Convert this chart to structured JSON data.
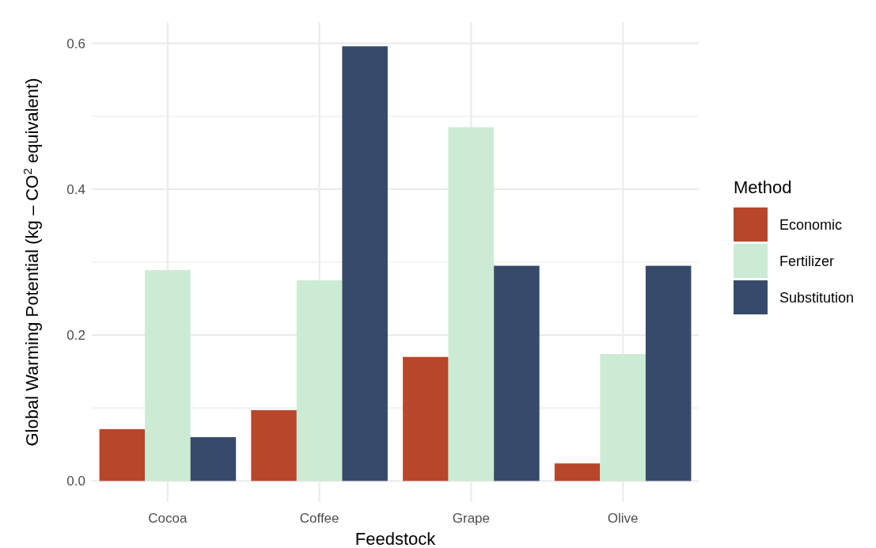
{
  "chart_data": {
    "type": "bar",
    "xlabel": "Feedstock",
    "ylabel": "Global Warming Potential (kg – CO$^{2}$ equivalent)",
    "legend_title": "Method",
    "categories": [
      "Cocoa",
      "Coffee",
      "Grape",
      "Olive"
    ],
    "series": [
      {
        "name": "Economic",
        "color": "#b8462a",
        "values": [
          0.071,
          0.097,
          0.17,
          0.024
        ]
      },
      {
        "name": "Fertilizer",
        "color": "#ccebd4",
        "values": [
          0.289,
          0.275,
          0.485,
          0.174
        ]
      },
      {
        "name": "Substitution",
        "color": "#374a6c",
        "values": [
          0.06,
          0.596,
          0.295,
          0.295
        ]
      }
    ],
    "ylim": [
      -0.029,
      0.629
    ],
    "yticks": [
      {
        "value": 0,
        "label": "0.0"
      },
      {
        "value": 0.1,
        "label": null
      },
      {
        "value": 0.2,
        "label": "0.2"
      },
      {
        "value": 0.3,
        "label": null
      },
      {
        "value": 0.4,
        "label": "0.4"
      },
      {
        "value": 0.5,
        "label": null
      },
      {
        "value": 0.6,
        "label": "0.6"
      }
    ],
    "grid": true,
    "legend": "right"
  }
}
